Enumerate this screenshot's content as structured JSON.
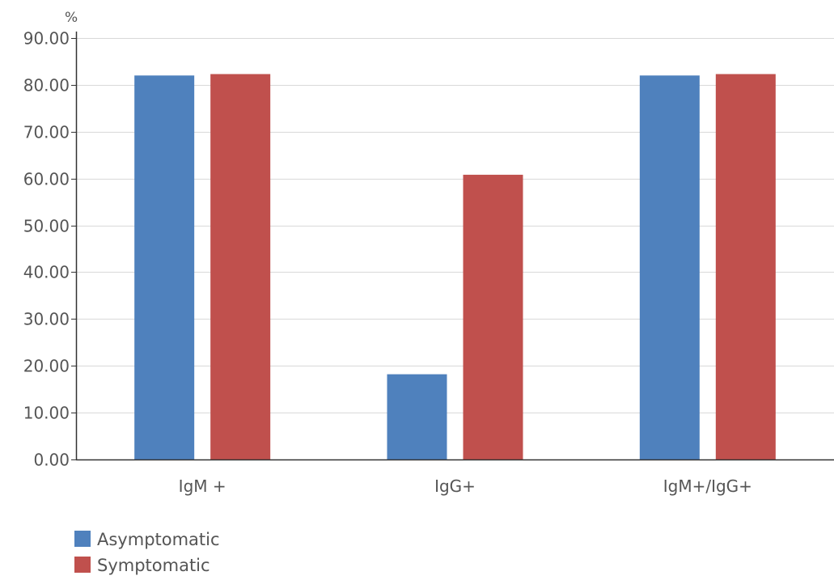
{
  "chart_data": {
    "type": "bar",
    "y_unit_label": "%",
    "categories": [
      "IgM +",
      "IgG+",
      "IgM+/IgG+"
    ],
    "series": [
      {
        "name": "Asymptomatic",
        "color": "#4f81bd",
        "values": [
          82.0,
          18.2,
          82.0
        ]
      },
      {
        "name": "Symptomatic",
        "color": "#c0504d",
        "values": [
          82.3,
          60.8,
          82.3
        ]
      }
    ],
    "ylim": [
      0,
      90
    ],
    "yticks": [
      0,
      10,
      20,
      30,
      40,
      50,
      60,
      70,
      80,
      90
    ],
    "ytick_labels": [
      "0.00",
      "10.00",
      "20.00",
      "30.00",
      "40.00",
      "50.00",
      "60.00",
      "70.00",
      "80.00",
      "90.00"
    ],
    "grid": true,
    "legend": "bottom-left"
  }
}
